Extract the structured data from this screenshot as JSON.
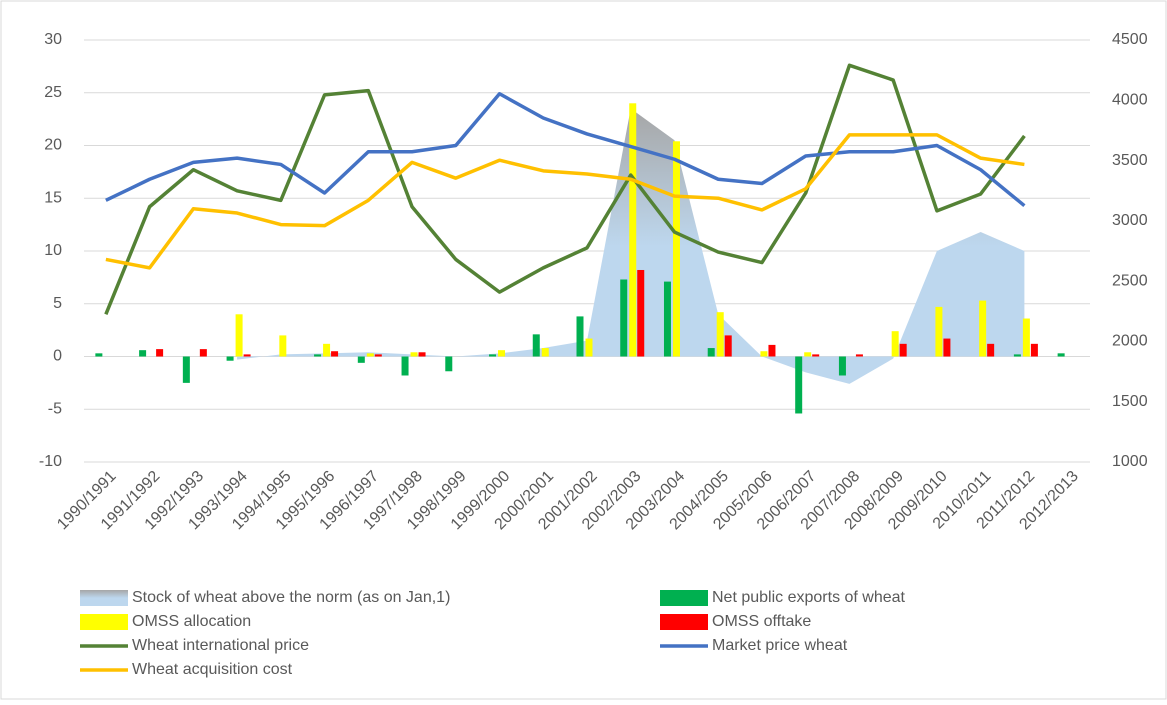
{
  "chart_data": {
    "type": "combo",
    "categories": [
      "1990/1991",
      "1991/1992",
      "1992/1993",
      "1993/1994",
      "1994/1995",
      "1995/1996",
      "1996/1997",
      "1997/1998",
      "1998/1999",
      "1999/2000",
      "2000/2001",
      "2001/2002",
      "2002/2003",
      "2003/2004",
      "2004/2005",
      "2005/2006",
      "2006/2007",
      "2007/2008",
      "2008/2009",
      "2009/2010",
      "2010/2011",
      "2011/2012",
      "2012/2013"
    ],
    "series": [
      {
        "name": "Stock of wheat above the norm (as on Jan,1)",
        "type": "area",
        "color": "#a9c6e6",
        "values": [
          null,
          null,
          null,
          -0.3,
          0.2,
          0.3,
          0.4,
          0.2,
          0,
          0.3,
          0.8,
          1.5,
          23.5,
          20.5,
          4,
          0,
          -1.5,
          -2.6,
          -0.2,
          10,
          11.8,
          10,
          null
        ]
      },
      {
        "name": "Net public exports of wheat",
        "type": "bar",
        "color": "#00b050",
        "values": [
          0.3,
          0.6,
          -2.5,
          -0.4,
          null,
          0.2,
          -0.6,
          -1.8,
          -1.4,
          0.2,
          2.1,
          3.8,
          7.3,
          7.1,
          0.8,
          null,
          -5.4,
          -1.8,
          null,
          null,
          null,
          0.2,
          0.3
        ]
      },
      {
        "name": "OMSS allocation",
        "type": "bar",
        "color": "#ffff00",
        "values": [
          null,
          null,
          null,
          4,
          2,
          1.2,
          0.3,
          0.4,
          null,
          0.6,
          0.8,
          1.7,
          24,
          20.4,
          4.2,
          0.5,
          0.4,
          null,
          2.4,
          4.7,
          5.3,
          3.6,
          null
        ]
      },
      {
        "name": "OMSS offtake",
        "type": "bar",
        "color": "#ff0000",
        "values": [
          null,
          0.7,
          0.7,
          0.2,
          null,
          0.5,
          0.2,
          0.4,
          null,
          null,
          null,
          null,
          8.2,
          null,
          2,
          1.1,
          0.2,
          0.2,
          1.2,
          1.7,
          1.2,
          1.2,
          null
        ]
      },
      {
        "name": "Wheat international price",
        "type": "line",
        "axis": "y2",
        "color": "#548235",
        "values": [
          2225,
          3117,
          3424,
          3249,
          3170,
          4045,
          4080,
          3117,
          2680,
          2409,
          2610,
          2776,
          3380,
          2907,
          2741,
          2654,
          3231,
          4290,
          4168,
          3083,
          3223,
          3704,
          null
        ]
      },
      {
        "name": "Market price wheat",
        "type": "line",
        "axis": "y2",
        "color": "#4472c4",
        "values": [
          3170,
          3345,
          3485,
          3520,
          3468,
          3231,
          3573,
          3573,
          3625,
          4054,
          3853,
          3721,
          3616,
          3511,
          3345,
          3310,
          3538,
          3573,
          3573,
          3625,
          3424,
          3126,
          null
        ]
      },
      {
        "name": "Wheat acquisition cost",
        "type": "line",
        "axis": "y2",
        "color": "#ffc000",
        "values": [
          2680,
          2610,
          3100,
          3065,
          2969,
          2960,
          3170,
          3485,
          3354,
          3503,
          3415,
          3389,
          3345,
          3205,
          3188,
          3091,
          3266,
          3713,
          3713,
          3713,
          3520,
          3468,
          null
        ]
      }
    ],
    "ylim": [
      -10,
      30
    ],
    "yticks": [
      -10,
      -5,
      0,
      5,
      10,
      15,
      20,
      25,
      30
    ],
    "y2lim": [
      1000,
      4500
    ],
    "y2ticks": [
      1000,
      1500,
      2000,
      2500,
      3000,
      3500,
      4000,
      4500
    ],
    "grid": true,
    "legend": "bottom"
  }
}
